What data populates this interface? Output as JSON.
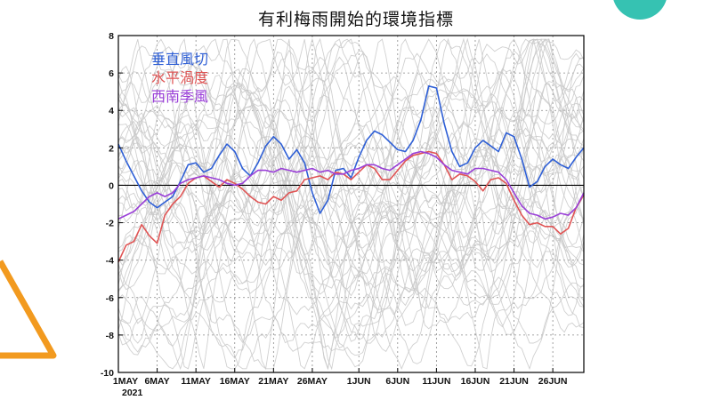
{
  "page": {
    "title": "有利梅雨開始的環境指標"
  },
  "chart_data": {
    "type": "line",
    "title": "有利梅雨開始的環境指標",
    "ylim": [
      -10,
      8
    ],
    "yticks": [
      -10,
      -8,
      -6,
      -4,
      -2,
      0,
      2,
      4,
      6,
      8
    ],
    "xlim": [
      1,
      61
    ],
    "xticks": [
      {
        "day": 1,
        "label": "1MAY"
      },
      {
        "day": 6,
        "label": "6MAY"
      },
      {
        "day": 11,
        "label": "11MAY"
      },
      {
        "day": 16,
        "label": "16MAY"
      },
      {
        "day": 21,
        "label": "21MAY"
      },
      {
        "day": 26,
        "label": "26MAY"
      },
      {
        "day": 32,
        "label": "1JUN"
      },
      {
        "day": 37,
        "label": "6JUN"
      },
      {
        "day": 42,
        "label": "11JUN"
      },
      {
        "day": 47,
        "label": "16JUN"
      },
      {
        "day": 52,
        "label": "21JUN"
      },
      {
        "day": 57,
        "label": "26JUN"
      }
    ],
    "year_label": "2021",
    "grid": true,
    "legend_position": "top-left",
    "zero_line": true,
    "series": [
      {
        "name": "垂直風切",
        "color": "#2e5fd6",
        "x": [
          1,
          2,
          3,
          4,
          5,
          6,
          7,
          8,
          9,
          10,
          11,
          12,
          13,
          14,
          15,
          16,
          17,
          18,
          19,
          20,
          21,
          22,
          23,
          24,
          25,
          26,
          27,
          28,
          29,
          30,
          31,
          32,
          33,
          34,
          35,
          36,
          37,
          38,
          39,
          40,
          41,
          42,
          43,
          44,
          45,
          46,
          47,
          48,
          49,
          50,
          51,
          52,
          53,
          54,
          55,
          56,
          57,
          58,
          59,
          60,
          61
        ],
        "y": [
          2.2,
          1.3,
          0.5,
          -0.3,
          -0.9,
          -1.2,
          -0.9,
          -0.6,
          0.2,
          1.1,
          1.2,
          0.7,
          0.9,
          1.6,
          2.2,
          1.8,
          0.9,
          0.5,
          1.2,
          2.1,
          2.6,
          2.2,
          1.4,
          1.9,
          1.2,
          -0.4,
          -1.5,
          -0.8,
          0.8,
          0.9,
          0.4,
          1.5,
          2.4,
          2.9,
          2.7,
          2.3,
          1.9,
          1.8,
          2.4,
          3.5,
          5.3,
          5.2,
          3.3,
          1.8,
          1.0,
          1.2,
          2.0,
          2.4,
          2.1,
          1.8,
          2.8,
          2.6,
          1.4,
          -0.1,
          0.2,
          1.0,
          1.4,
          1.1,
          0.9,
          1.5,
          2.0
        ]
      },
      {
        "name": "水平渦度",
        "color": "#e05454",
        "x": [
          1,
          2,
          3,
          4,
          5,
          6,
          7,
          8,
          9,
          10,
          11,
          12,
          13,
          14,
          15,
          16,
          17,
          18,
          19,
          20,
          21,
          22,
          23,
          24,
          25,
          26,
          27,
          28,
          29,
          30,
          31,
          32,
          33,
          34,
          35,
          36,
          37,
          38,
          39,
          40,
          41,
          42,
          43,
          44,
          45,
          46,
          47,
          48,
          49,
          50,
          51,
          52,
          53,
          54,
          55,
          56,
          57,
          58,
          59,
          60,
          61
        ],
        "y": [
          -4.1,
          -3.2,
          -3.0,
          -2.1,
          -2.7,
          -3.1,
          -1.6,
          -1.0,
          -0.6,
          0.1,
          0.4,
          0.5,
          0.2,
          -0.1,
          0.3,
          0.1,
          -0.2,
          -0.6,
          -0.9,
          -1.0,
          -0.6,
          -0.8,
          -0.4,
          -0.3,
          0.3,
          0.4,
          0.5,
          0.3,
          0.7,
          0.6,
          0.3,
          0.7,
          1.1,
          0.9,
          0.3,
          0.3,
          0.8,
          1.3,
          1.6,
          1.7,
          1.8,
          1.7,
          1.1,
          0.3,
          0.6,
          0.5,
          0.2,
          -0.3,
          0.3,
          0.4,
          0.1,
          -0.8,
          -1.6,
          -2.1,
          -2.0,
          -2.2,
          -2.2,
          -2.6,
          -2.3,
          -1.2,
          -0.5
        ]
      },
      {
        "name": "西南季風",
        "color": "#9a3fd8",
        "x": [
          1,
          2,
          3,
          4,
          5,
          6,
          7,
          8,
          9,
          10,
          11,
          12,
          13,
          14,
          15,
          16,
          17,
          18,
          19,
          20,
          21,
          22,
          23,
          24,
          25,
          26,
          27,
          28,
          29,
          30,
          31,
          32,
          33,
          34,
          35,
          36,
          37,
          38,
          39,
          40,
          41,
          42,
          43,
          44,
          45,
          46,
          47,
          48,
          49,
          50,
          51,
          52,
          53,
          54,
          55,
          56,
          57,
          58,
          59,
          60,
          61
        ],
        "y": [
          -1.8,
          -1.6,
          -1.4,
          -1.0,
          -0.6,
          -0.4,
          -0.6,
          -0.4,
          0.1,
          0.3,
          0.4,
          0.5,
          0.4,
          0.3,
          0.1,
          0.0,
          0.1,
          0.5,
          0.8,
          0.8,
          0.7,
          0.9,
          0.8,
          0.7,
          0.8,
          0.9,
          0.7,
          0.8,
          0.6,
          0.6,
          0.8,
          0.9,
          1.1,
          1.1,
          0.9,
          0.8,
          1.1,
          1.4,
          1.7,
          1.8,
          1.7,
          1.5,
          1.1,
          0.8,
          0.7,
          0.6,
          0.9,
          0.9,
          0.8,
          0.7,
          0.3,
          -0.4,
          -1.1,
          -1.5,
          -1.6,
          -1.8,
          -1.7,
          -1.5,
          -1.6,
          -1.2,
          -0.4
        ]
      }
    ]
  },
  "decorations": {
    "circle_color": "#36c2b2",
    "triangle_color": "#f29a1f",
    "background_line_color": "#c8c8c8"
  }
}
